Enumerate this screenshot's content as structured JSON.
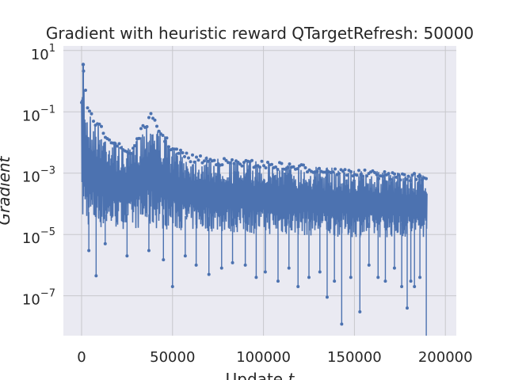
{
  "chart_data": {
    "type": "line",
    "title": "Gradient with heuristic reward QTargetRefresh: 50000",
    "xlabel": "Update ",
    "xlabel_var": "t",
    "ylabel": "Gradient",
    "yscale": "log",
    "xlim": [
      -10000,
      206000
    ],
    "ylim_exp": [
      -8.3,
      1.15
    ],
    "x_ticks": [
      {
        "value": 0,
        "label": "0"
      },
      {
        "value": 50000,
        "label": "50000"
      },
      {
        "value": 100000,
        "label": "100000"
      },
      {
        "value": 150000,
        "label": "150000"
      },
      {
        "value": 200000,
        "label": "200000"
      }
    ],
    "y_ticks": [
      {
        "exp": 1,
        "base": "10",
        "sup": "1"
      },
      {
        "exp": -1,
        "base": "10",
        "sup": "−1"
      },
      {
        "exp": -3,
        "base": "10",
        "sup": "−3"
      },
      {
        "exp": -5,
        "base": "10",
        "sup": "−5"
      },
      {
        "exp": -7,
        "base": "10",
        "sup": "−7"
      }
    ],
    "grid": true,
    "colors": {
      "series": "#4c72b0",
      "background": "#eaeaf2",
      "grid": "#c8c8cc"
    },
    "series": [
      {
        "x_range": [
          0,
          190000
        ],
        "upper_envelope": [
          [
            0,
            0.25
          ],
          [
            900,
            3.5
          ],
          [
            3000,
            0.15
          ],
          [
            8000,
            0.05
          ],
          [
            15000,
            0.02
          ],
          [
            22000,
            0.008
          ],
          [
            27000,
            0.006
          ],
          [
            32000,
            0.025
          ],
          [
            38000,
            0.09
          ],
          [
            45000,
            0.02
          ],
          [
            50000,
            0.008
          ],
          [
            60000,
            0.004
          ],
          [
            80000,
            0.003
          ],
          [
            100000,
            0.0025
          ],
          [
            120000,
            0.002
          ],
          [
            140000,
            0.0015
          ],
          [
            160000,
            0.0012
          ],
          [
            180000,
            0.001
          ],
          [
            190000,
            0.001
          ]
        ],
        "lower_envelope": [
          [
            0,
            2e-05
          ],
          [
            10000,
            1.5e-05
          ],
          [
            40000,
            1.5e-05
          ],
          [
            100000,
            1e-05
          ],
          [
            150000,
            8e-06
          ],
          [
            190000,
            8e-06
          ]
        ],
        "dips": [
          [
            4000,
            3e-06
          ],
          [
            8000,
            4.5e-07
          ],
          [
            13000,
            5e-06
          ],
          [
            25000,
            2e-06
          ],
          [
            37000,
            3e-06
          ],
          [
            45000,
            1.5e-06
          ],
          [
            50000,
            2e-07
          ],
          [
            57000,
            2e-06
          ],
          [
            63000,
            1e-06
          ],
          [
            70000,
            5e-07
          ],
          [
            77000,
            8e-07
          ],
          [
            83000,
            1.2e-06
          ],
          [
            90000,
            1e-06
          ],
          [
            96000,
            4e-07
          ],
          [
            101000,
            6e-07
          ],
          [
            108000,
            3e-07
          ],
          [
            114000,
            8e-07
          ],
          [
            119000,
            2e-07
          ],
          [
            125000,
            4e-07
          ],
          [
            131000,
            6e-07
          ],
          [
            135000,
            9e-08
          ],
          [
            139000,
            3e-07
          ],
          [
            143000,
            1.2e-08
          ],
          [
            148000,
            4e-07
          ],
          [
            153000,
            3e-08
          ],
          [
            158000,
            1e-06
          ],
          [
            163000,
            4e-07
          ],
          [
            167000,
            3e-07
          ],
          [
            172000,
            8e-07
          ],
          [
            176000,
            2e-07
          ],
          [
            179000,
            4e-08
          ],
          [
            181000,
            3e-07
          ],
          [
            183000,
            2e-07
          ],
          [
            186000,
            4e-07
          ],
          [
            189500,
            4e-09
          ]
        ]
      }
    ]
  }
}
